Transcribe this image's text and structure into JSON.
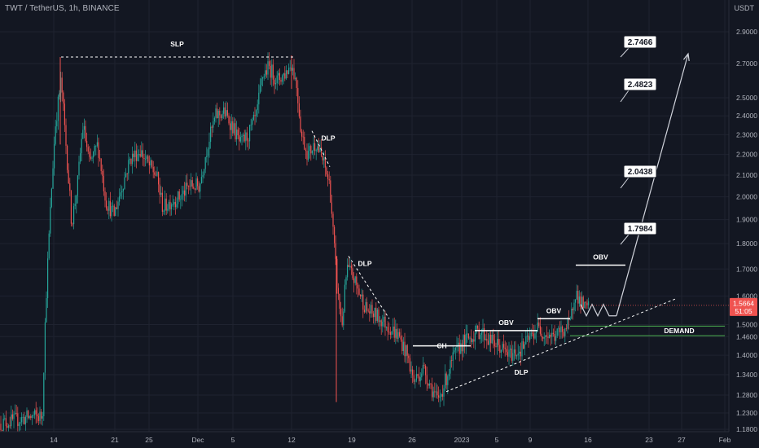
{
  "header": {
    "symbol_line": "TWT / TetherUS, 1h, BINANCE",
    "currency": "USDT"
  },
  "colors": {
    "background": "#131722",
    "up_candle": "#26a69a",
    "down_candle": "#ef5350",
    "grid": "#1f2330",
    "annotation": "#ffffff",
    "demand_line": "#4caf50",
    "price_badge": "#ef5350"
  },
  "chart_data": {
    "type": "candlestick",
    "title": "",
    "xlabel": "",
    "ylabel": "",
    "price_axis": {
      "scale": "log",
      "ticks": [
        2.9,
        2.7,
        2.5,
        2.4,
        2.3,
        2.2,
        2.1,
        2.0,
        1.9,
        1.8,
        1.7,
        1.6,
        1.5,
        1.46,
        1.4,
        1.34,
        1.28,
        1.23,
        1.18
      ],
      "tick_labels": [
        "2.9000",
        "2.7000",
        "2.5000",
        "2.4000",
        "2.3000",
        "2.2000",
        "2.1000",
        "2.0000",
        "1.9000",
        "1.8000",
        "1.7000",
        "1.6000",
        "1.5000",
        "1.4600",
        "1.4000",
        "1.3400",
        "1.2800",
        "1.2300",
        "1.1800"
      ],
      "range": [
        1.18,
        3.05
      ]
    },
    "time_axis": {
      "labels": [
        "14",
        "21",
        "25",
        "Dec",
        "5",
        "12",
        "19",
        "26",
        "2023",
        "5",
        "9",
        "16",
        "23",
        "27",
        "Feb"
      ]
    },
    "current_price": {
      "value": 1.5664,
      "label": "1.5664",
      "countdown": "51:05"
    },
    "price_path": [
      {
        "x": 0,
        "p": 1.2
      },
      {
        "x": 40,
        "p": 1.22
      },
      {
        "x": 52,
        "p": 1.22
      },
      {
        "x": 56,
        "p": 1.55
      },
      {
        "x": 62,
        "p": 1.95
      },
      {
        "x": 68,
        "p": 2.35
      },
      {
        "x": 75,
        "p": 2.6
      },
      {
        "x": 80,
        "p": 2.3
      },
      {
        "x": 88,
        "p": 1.88
      },
      {
        "x": 95,
        "p": 2.05
      },
      {
        "x": 102,
        "p": 2.35
      },
      {
        "x": 110,
        "p": 2.15
      },
      {
        "x": 120,
        "p": 2.25
      },
      {
        "x": 130,
        "p": 1.98
      },
      {
        "x": 140,
        "p": 1.92
      },
      {
        "x": 150,
        "p": 2.05
      },
      {
        "x": 160,
        "p": 2.18
      },
      {
        "x": 172,
        "p": 2.22
      },
      {
        "x": 182,
        "p": 2.15
      },
      {
        "x": 192,
        "p": 2.1
      },
      {
        "x": 200,
        "p": 1.95
      },
      {
        "x": 210,
        "p": 1.98
      },
      {
        "x": 222,
        "p": 2.0
      },
      {
        "x": 232,
        "p": 2.05
      },
      {
        "x": 245,
        "p": 2.05
      },
      {
        "x": 255,
        "p": 2.25
      },
      {
        "x": 265,
        "p": 2.4
      },
      {
        "x": 275,
        "p": 2.42
      },
      {
        "x": 285,
        "p": 2.35
      },
      {
        "x": 295,
        "p": 2.25
      },
      {
        "x": 305,
        "p": 2.3
      },
      {
        "x": 315,
        "p": 2.4
      },
      {
        "x": 322,
        "p": 2.62
      },
      {
        "x": 330,
        "p": 2.68
      },
      {
        "x": 340,
        "p": 2.6
      },
      {
        "x": 350,
        "p": 2.64
      },
      {
        "x": 358,
        "p": 2.7
      },
      {
        "x": 364,
        "p": 2.58
      },
      {
        "x": 370,
        "p": 2.3
      },
      {
        "x": 378,
        "p": 2.2
      },
      {
        "x": 388,
        "p": 2.26
      },
      {
        "x": 398,
        "p": 2.15
      },
      {
        "x": 405,
        "p": 2.05
      },
      {
        "x": 410,
        "p": 1.8
      },
      {
        "x": 415,
        "p": 1.6
      },
      {
        "x": 420,
        "p": 1.5
      },
      {
        "x": 426,
        "p": 1.7
      },
      {
        "x": 432,
        "p": 1.68
      },
      {
        "x": 440,
        "p": 1.62
      },
      {
        "x": 450,
        "p": 1.55
      },
      {
        "x": 462,
        "p": 1.53
      },
      {
        "x": 475,
        "p": 1.5
      },
      {
        "x": 490,
        "p": 1.46
      },
      {
        "x": 500,
        "p": 1.4
      },
      {
        "x": 508,
        "p": 1.32
      },
      {
        "x": 520,
        "p": 1.36
      },
      {
        "x": 530,
        "p": 1.3
      },
      {
        "x": 538,
        "p": 1.26
      },
      {
        "x": 548,
        "p": 1.33
      },
      {
        "x": 558,
        "p": 1.4
      },
      {
        "x": 568,
        "p": 1.44
      },
      {
        "x": 578,
        "p": 1.46
      },
      {
        "x": 590,
        "p": 1.48
      },
      {
        "x": 600,
        "p": 1.45
      },
      {
        "x": 612,
        "p": 1.43
      },
      {
        "x": 625,
        "p": 1.4
      },
      {
        "x": 640,
        "p": 1.42
      },
      {
        "x": 652,
        "p": 1.46
      },
      {
        "x": 660,
        "p": 1.49
      },
      {
        "x": 670,
        "p": 1.47
      },
      {
        "x": 680,
        "p": 1.46
      },
      {
        "x": 690,
        "p": 1.48
      },
      {
        "x": 700,
        "p": 1.5
      },
      {
        "x": 706,
        "p": 1.62
      },
      {
        "x": 712,
        "p": 1.58
      },
      {
        "x": 720,
        "p": 1.55
      },
      {
        "x": 724,
        "p": 1.567
      }
    ],
    "spikes": [
      {
        "x": 413,
        "p_low": 1.26,
        "p_high": 1.75
      },
      {
        "x": 74,
        "p_low": 2.25,
        "p_high": 2.74
      },
      {
        "x": 358,
        "p_low": 2.55,
        "p_high": 2.75
      }
    ],
    "annotations": [
      {
        "label": "SLP",
        "price": 2.74,
        "x_start": 75,
        "x_end": 360
      },
      {
        "label": "DLP",
        "points": [
          [
            383,
            2.32
          ],
          [
            405,
            2.14
          ]
        ],
        "style": "dashed"
      },
      {
        "label": "DLP",
        "points": [
          [
            428,
            1.75
          ],
          [
            478,
            1.52
          ]
        ],
        "style": "dashed"
      },
      {
        "label": "CH",
        "price": 1.43,
        "x_start": 507,
        "x_end": 578,
        "style": "solid"
      },
      {
        "label": "OBV",
        "price": 1.48,
        "x_start": 583,
        "x_end": 660,
        "style": "solid"
      },
      {
        "label": "OBV",
        "price": 1.52,
        "x_start": 660,
        "x_end": 700,
        "style": "solid"
      },
      {
        "label": "OBV",
        "price": 1.715,
        "x_start": 707,
        "x_end": 768,
        "style": "solid"
      },
      {
        "label": "DLP",
        "label_x": 640,
        "label_price": 1.35
      },
      {
        "label": "DEMAND",
        "price_top": 1.495,
        "price_bottom": 1.463,
        "x_start": 700,
        "x_end": 890
      }
    ],
    "trendline": {
      "points": [
        [
          548,
          1.29
        ],
        [
          830,
          1.59
        ]
      ],
      "style": "dashed"
    },
    "projection": {
      "zigzag": [
        [
          713,
          1.57
        ],
        [
          720,
          1.53
        ],
        [
          727,
          1.57
        ],
        [
          734,
          1.53
        ],
        [
          741,
          1.57
        ],
        [
          748,
          1.53
        ],
        [
          757,
          1.53
        ]
      ],
      "arrow_to": [
        845,
        2.76
      ]
    },
    "targets": [
      {
        "label": "2.7466",
        "value": 2.7466
      },
      {
        "label": "2.4823",
        "value": 2.4823
      },
      {
        "label": "2.0438",
        "value": 2.0438
      },
      {
        "label": "1.7984",
        "value": 1.7984
      }
    ]
  }
}
